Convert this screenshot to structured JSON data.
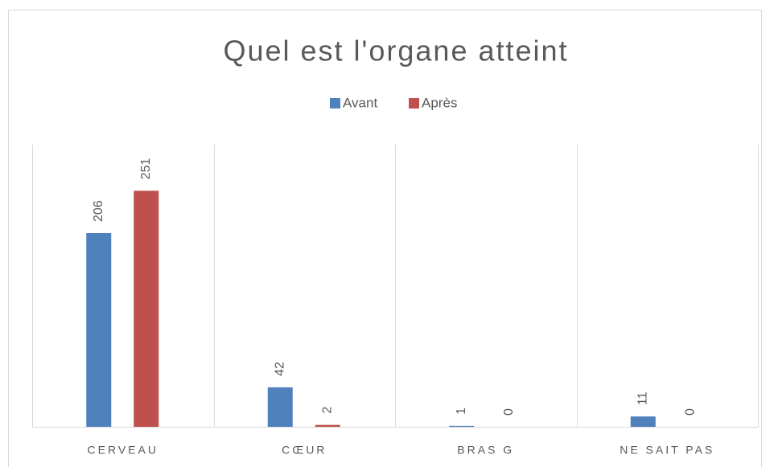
{
  "chart_data": {
    "type": "bar",
    "title": "Quel est l'organe atteint",
    "categories": [
      "CERVEAU",
      "CŒUR",
      "BRAS G",
      "NE SAIT PAS"
    ],
    "series": [
      {
        "name": "Avant",
        "color": "#4f81bd",
        "values": [
          206,
          42,
          1,
          11
        ]
      },
      {
        "name": "Après",
        "color": "#c0504d",
        "values": [
          251,
          2,
          0,
          0
        ]
      }
    ],
    "ylim": [
      0,
      300
    ],
    "legend": "top"
  }
}
